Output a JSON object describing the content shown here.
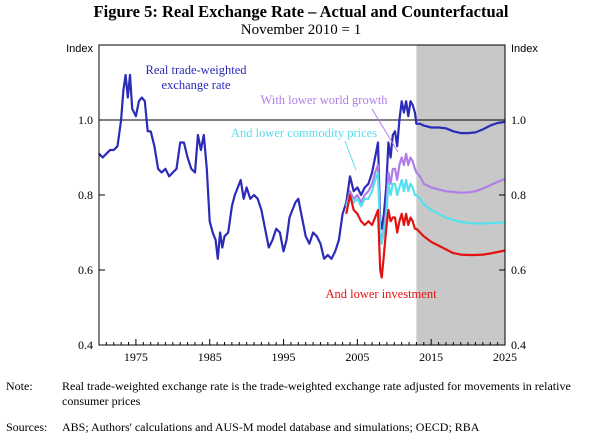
{
  "title": "Figure 5: Real Exchange Rate – Actual and Counterfactual",
  "subtitle": "November 2010 = 1",
  "note_label": "Note:",
  "note_text": "Real trade-weighted exchange rate is the trade-weighted exchange rate adjusted for movements in relative consumer prices",
  "sources_label": "Sources:",
  "sources_text": "ABS; Authors' calculations and AUS-M model database and simulations; OECD; RBA",
  "chart_data": {
    "type": "line",
    "title": "Figure 5: Real Exchange Rate – Actual and Counterfactual",
    "subtitle": "November 2010 = 1",
    "ylabel_left": "Index",
    "ylabel_right": "Index",
    "xlim": [
      1970,
      2025
    ],
    "ylim": [
      0.4,
      1.2
    ],
    "xticks": [
      1975,
      1985,
      1995,
      2005,
      2015,
      2025
    ],
    "yticks": [
      0.4,
      0.6,
      0.8,
      1.0
    ],
    "ytick_labels": [
      "0.4",
      "0.6",
      "0.8",
      "1.0"
    ],
    "reference_line": 1.0,
    "shaded_region": [
      2013,
      2025
    ],
    "colors": {
      "actual": "#2b2bb8",
      "world": "#b07ee8",
      "commodity": "#55e0ee",
      "investment": "#e41313",
      "shade": "#c8c8c8"
    },
    "series": [
      {
        "name": "Real trade-weighted exchange rate",
        "key": "actual",
        "points": [
          [
            1970,
            0.91
          ],
          [
            1970.5,
            0.9
          ],
          [
            1971,
            0.91
          ],
          [
            1971.5,
            0.92
          ],
          [
            1972,
            0.92
          ],
          [
            1972.5,
            0.93
          ],
          [
            1973,
            1.0
          ],
          [
            1973.3,
            1.08
          ],
          [
            1973.6,
            1.12
          ],
          [
            1973.9,
            1.06
          ],
          [
            1974.2,
            1.12
          ],
          [
            1974.5,
            1.03
          ],
          [
            1975,
            1.01
          ],
          [
            1975.4,
            1.05
          ],
          [
            1975.8,
            1.06
          ],
          [
            1976.2,
            1.05
          ],
          [
            1976.6,
            0.97
          ],
          [
            1977,
            0.97
          ],
          [
            1977.5,
            0.93
          ],
          [
            1978,
            0.87
          ],
          [
            1978.5,
            0.86
          ],
          [
            1979,
            0.87
          ],
          [
            1979.5,
            0.85
          ],
          [
            1980,
            0.86
          ],
          [
            1980.5,
            0.87
          ],
          [
            1981,
            0.94
          ],
          [
            1981.5,
            0.94
          ],
          [
            1982,
            0.9
          ],
          [
            1982.5,
            0.87
          ],
          [
            1983,
            0.86
          ],
          [
            1983.4,
            0.96
          ],
          [
            1983.8,
            0.92
          ],
          [
            1984.2,
            0.96
          ],
          [
            1984.6,
            0.87
          ],
          [
            1985,
            0.73
          ],
          [
            1985.4,
            0.7
          ],
          [
            1985.8,
            0.68
          ],
          [
            1986.1,
            0.63
          ],
          [
            1986.4,
            0.7
          ],
          [
            1986.7,
            0.66
          ],
          [
            1987,
            0.69
          ],
          [
            1987.5,
            0.7
          ],
          [
            1988,
            0.77
          ],
          [
            1988.4,
            0.8
          ],
          [
            1988.8,
            0.82
          ],
          [
            1989.2,
            0.84
          ],
          [
            1989.6,
            0.79
          ],
          [
            1990,
            0.82
          ],
          [
            1990.5,
            0.79
          ],
          [
            1991,
            0.8
          ],
          [
            1991.5,
            0.79
          ],
          [
            1992,
            0.76
          ],
          [
            1992.5,
            0.71
          ],
          [
            1993,
            0.66
          ],
          [
            1993.5,
            0.68
          ],
          [
            1994,
            0.71
          ],
          [
            1994.5,
            0.7
          ],
          [
            1995,
            0.65
          ],
          [
            1995.4,
            0.68
          ],
          [
            1995.8,
            0.74
          ],
          [
            1996.2,
            0.76
          ],
          [
            1996.6,
            0.78
          ],
          [
            1997,
            0.79
          ],
          [
            1997.5,
            0.74
          ],
          [
            1998,
            0.69
          ],
          [
            1998.5,
            0.67
          ],
          [
            1999,
            0.7
          ],
          [
            1999.5,
            0.69
          ],
          [
            2000,
            0.67
          ],
          [
            2000.5,
            0.63
          ],
          [
            2001,
            0.64
          ],
          [
            2001.5,
            0.63
          ],
          [
            2002,
            0.65
          ],
          [
            2002.5,
            0.68
          ],
          [
            2003,
            0.75
          ],
          [
            2003.5,
            0.78
          ],
          [
            2004,
            0.85
          ],
          [
            2004.5,
            0.81
          ],
          [
            2005,
            0.82
          ],
          [
            2005.5,
            0.8
          ],
          [
            2006,
            0.82
          ],
          [
            2006.5,
            0.83
          ],
          [
            2007,
            0.86
          ],
          [
            2007.4,
            0.9
          ],
          [
            2007.8,
            0.94
          ],
          [
            2008.1,
            0.73
          ],
          [
            2008.3,
            0.71
          ],
          [
            2008.6,
            0.75
          ],
          [
            2008.9,
            0.82
          ],
          [
            2009.2,
            0.94
          ],
          [
            2009.5,
            0.9
          ],
          [
            2009.8,
            0.96
          ],
          [
            2010.1,
            0.97
          ],
          [
            2010.4,
            0.93
          ],
          [
            2010.7,
            1.0
          ],
          [
            2011,
            1.05
          ],
          [
            2011.3,
            1.02
          ],
          [
            2011.6,
            1.05
          ],
          [
            2011.9,
            1.01
          ],
          [
            2012.2,
            1.05
          ],
          [
            2012.5,
            1.04
          ],
          [
            2012.8,
            1.02
          ],
          [
            2013,
            0.99
          ],
          [
            2013.5,
            0.99
          ],
          [
            2014,
            0.985
          ],
          [
            2015,
            0.98
          ],
          [
            2016,
            0.98
          ],
          [
            2017,
            0.978
          ],
          [
            2018,
            0.97
          ],
          [
            2019,
            0.965
          ],
          [
            2020,
            0.965
          ],
          [
            2021,
            0.967
          ],
          [
            2022,
            0.975
          ],
          [
            2023,
            0.985
          ],
          [
            2024,
            0.992
          ],
          [
            2025,
            0.995
          ]
        ]
      },
      {
        "name": "With lower world growth",
        "key": "world",
        "points": [
          [
            2003.5,
            0.77
          ],
          [
            2004,
            0.81
          ],
          [
            2004.5,
            0.79
          ],
          [
            2005,
            0.8
          ],
          [
            2005.5,
            0.78
          ],
          [
            2006,
            0.8
          ],
          [
            2006.5,
            0.81
          ],
          [
            2007,
            0.83
          ],
          [
            2007.4,
            0.86
          ],
          [
            2007.8,
            0.88
          ],
          [
            2008.1,
            0.7
          ],
          [
            2008.3,
            0.68
          ],
          [
            2008.6,
            0.71
          ],
          [
            2008.9,
            0.76
          ],
          [
            2009.2,
            0.86
          ],
          [
            2009.5,
            0.83
          ],
          [
            2009.8,
            0.87
          ],
          [
            2010.1,
            0.87
          ],
          [
            2010.4,
            0.84
          ],
          [
            2010.7,
            0.88
          ],
          [
            2011,
            0.9
          ],
          [
            2011.3,
            0.88
          ],
          [
            2011.6,
            0.91
          ],
          [
            2011.9,
            0.88
          ],
          [
            2012.2,
            0.9
          ],
          [
            2012.5,
            0.89
          ],
          [
            2012.8,
            0.87
          ],
          [
            2013,
            0.86
          ],
          [
            2013.5,
            0.85
          ],
          [
            2014,
            0.83
          ],
          [
            2015,
            0.82
          ],
          [
            2016,
            0.815
          ],
          [
            2017,
            0.81
          ],
          [
            2018,
            0.808
          ],
          [
            2019,
            0.806
          ],
          [
            2020,
            0.807
          ],
          [
            2021,
            0.81
          ],
          [
            2022,
            0.817
          ],
          [
            2023,
            0.826
          ],
          [
            2024,
            0.835
          ],
          [
            2025,
            0.843
          ]
        ]
      },
      {
        "name": "And lower commodity prices",
        "key": "commodity",
        "points": [
          [
            2003.5,
            0.77
          ],
          [
            2004,
            0.8
          ],
          [
            2004.5,
            0.78
          ],
          [
            2005,
            0.79
          ],
          [
            2005.5,
            0.77
          ],
          [
            2006,
            0.79
          ],
          [
            2006.5,
            0.79
          ],
          [
            2007,
            0.81
          ],
          [
            2007.4,
            0.84
          ],
          [
            2007.8,
            0.86
          ],
          [
            2008.1,
            0.69
          ],
          [
            2008.3,
            0.67
          ],
          [
            2008.6,
            0.7
          ],
          [
            2008.9,
            0.74
          ],
          [
            2009.2,
            0.83
          ],
          [
            2009.5,
            0.8
          ],
          [
            2009.8,
            0.83
          ],
          [
            2010.1,
            0.83
          ],
          [
            2010.4,
            0.8
          ],
          [
            2010.7,
            0.82
          ],
          [
            2011,
            0.84
          ],
          [
            2011.3,
            0.81
          ],
          [
            2011.6,
            0.84
          ],
          [
            2011.9,
            0.81
          ],
          [
            2012.2,
            0.83
          ],
          [
            2012.5,
            0.82
          ],
          [
            2012.8,
            0.8
          ],
          [
            2013,
            0.8
          ],
          [
            2013.5,
            0.79
          ],
          [
            2014,
            0.775
          ],
          [
            2015,
            0.76
          ],
          [
            2016,
            0.75
          ],
          [
            2017,
            0.74
          ],
          [
            2018,
            0.733
          ],
          [
            2019,
            0.728
          ],
          [
            2020,
            0.726
          ],
          [
            2021,
            0.724
          ],
          [
            2022,
            0.724
          ],
          [
            2023,
            0.725
          ],
          [
            2024,
            0.726
          ],
          [
            2025,
            0.727
          ]
        ]
      },
      {
        "name": "And lower investment",
        "key": "investment",
        "points": [
          [
            2003.5,
            0.75
          ],
          [
            2004,
            0.8
          ],
          [
            2004.5,
            0.76
          ],
          [
            2005,
            0.75
          ],
          [
            2005.5,
            0.73
          ],
          [
            2006,
            0.72
          ],
          [
            2006.5,
            0.73
          ],
          [
            2007,
            0.72
          ],
          [
            2007.4,
            0.74
          ],
          [
            2007.8,
            0.76
          ],
          [
            2008.1,
            0.6
          ],
          [
            2008.3,
            0.58
          ],
          [
            2008.6,
            0.64
          ],
          [
            2008.9,
            0.71
          ],
          [
            2009.2,
            0.76
          ],
          [
            2009.5,
            0.73
          ],
          [
            2009.8,
            0.74
          ],
          [
            2010.1,
            0.74
          ],
          [
            2010.4,
            0.7
          ],
          [
            2010.7,
            0.73
          ],
          [
            2011,
            0.75
          ],
          [
            2011.3,
            0.72
          ],
          [
            2011.6,
            0.75
          ],
          [
            2011.9,
            0.72
          ],
          [
            2012.2,
            0.74
          ],
          [
            2012.5,
            0.73
          ],
          [
            2012.8,
            0.71
          ],
          [
            2013,
            0.71
          ],
          [
            2013.5,
            0.7
          ],
          [
            2014,
            0.69
          ],
          [
            2015,
            0.675
          ],
          [
            2016,
            0.665
          ],
          [
            2017,
            0.655
          ],
          [
            2018,
            0.645
          ],
          [
            2019,
            0.641
          ],
          [
            2020,
            0.64
          ],
          [
            2021,
            0.64
          ],
          [
            2022,
            0.641
          ],
          [
            2023,
            0.644
          ],
          [
            2024,
            0.648
          ],
          [
            2025,
            0.652
          ]
        ]
      }
    ],
    "annotations": [
      {
        "key": "actual",
        "lines": [
          "Real trade-weighted",
          "exchange rate"
        ]
      },
      {
        "key": "world",
        "lines": [
          "With lower world growth"
        ]
      },
      {
        "key": "commodity",
        "lines": [
          "And lower commodity prices"
        ]
      },
      {
        "key": "investment",
        "lines": [
          "And lower investment"
        ]
      }
    ]
  }
}
